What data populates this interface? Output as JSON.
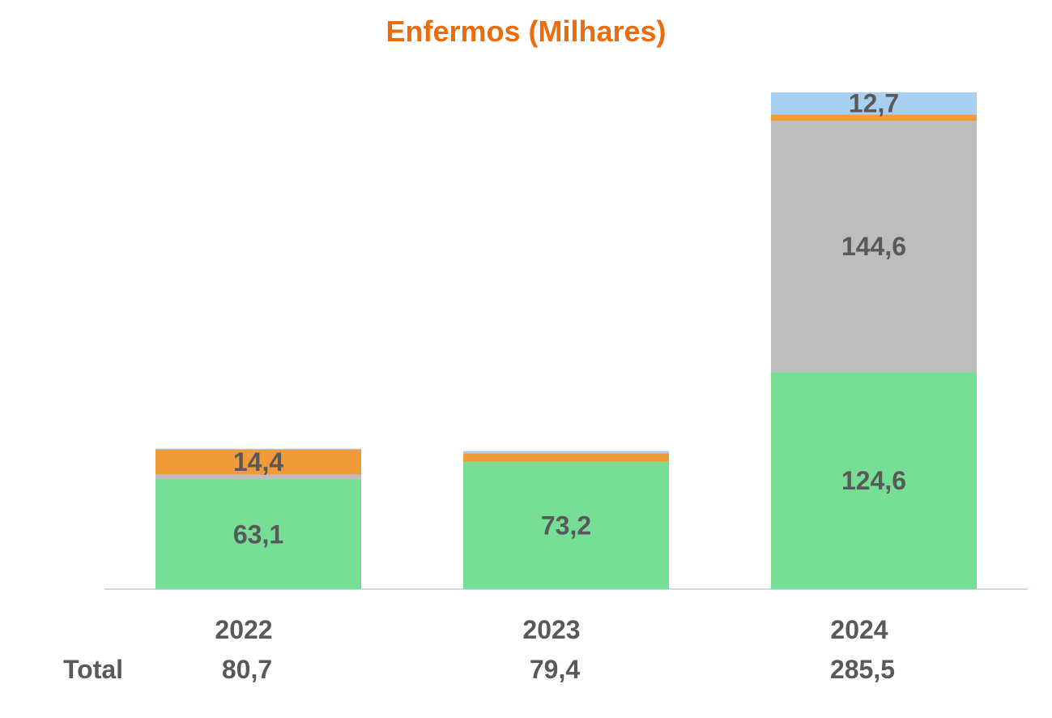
{
  "chart_data": {
    "type": "bar",
    "stacked": true,
    "title": "Enfermos (Milhares)",
    "categories": [
      "2022",
      "2023",
      "2024"
    ],
    "series": [
      {
        "color": "#77de95",
        "values": [
          63.1,
          73.2,
          124.6
        ],
        "labels": [
          "63,1",
          "73,2",
          "124,6"
        ]
      },
      {
        "color": "#bdbdbd",
        "values": [
          2.8,
          0.0,
          144.6
        ],
        "labels": [
          "",
          "",
          "144,6"
        ]
      },
      {
        "color": "#f09a3a",
        "values": [
          14.4,
          4.8,
          3.6
        ],
        "labels": [
          "14,4",
          "",
          ""
        ]
      },
      {
        "color": "#a6cff0",
        "values": [
          0.4,
          1.4,
          12.7
        ],
        "labels": [
          "",
          "",
          "12,7"
        ]
      }
    ],
    "totals_label": "Total",
    "totals": [
      "80,7",
      "79,4",
      "285,5"
    ],
    "ylim": [
      0,
      285.5
    ],
    "grid": false,
    "legend": "none"
  }
}
